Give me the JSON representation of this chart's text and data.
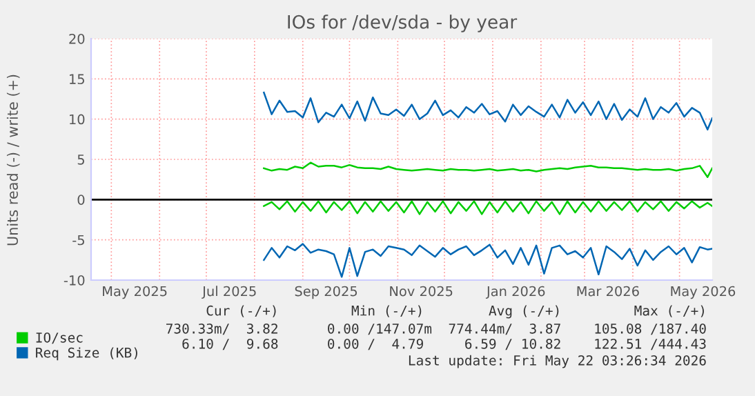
{
  "chart_data": {
    "type": "line",
    "title": "IOs for /dev/sda - by year",
    "ylabel": "Units read (-) / write (+)",
    "x": [
      "2025-08-07",
      "2025-08-12",
      "2025-08-17",
      "2025-08-22",
      "2025-08-27",
      "2025-09-01",
      "2025-09-06",
      "2025-09-11",
      "2025-09-16",
      "2025-09-21",
      "2025-09-26",
      "2025-10-01",
      "2025-10-06",
      "2025-10-11",
      "2025-10-16",
      "2025-10-21",
      "2025-10-26",
      "2025-10-31",
      "2025-11-05",
      "2025-11-10",
      "2025-11-15",
      "2025-11-20",
      "2025-11-25",
      "2025-11-30",
      "2025-12-05",
      "2025-12-10",
      "2025-12-15",
      "2025-12-20",
      "2025-12-25",
      "2025-12-30",
      "2026-01-04",
      "2026-01-09",
      "2026-01-14",
      "2026-01-19",
      "2026-01-24",
      "2026-01-29",
      "2026-02-03",
      "2026-02-08",
      "2026-02-13",
      "2026-02-18",
      "2026-02-23",
      "2026-02-28",
      "2026-03-05",
      "2026-03-10",
      "2026-03-15",
      "2026-03-20",
      "2026-03-25",
      "2026-03-30",
      "2026-04-04",
      "2026-04-09",
      "2026-04-14",
      "2026-04-19",
      "2026-04-24",
      "2026-04-29",
      "2026-05-04",
      "2026-05-09",
      "2026-05-14",
      "2026-05-19",
      "2026-05-22"
    ],
    "series": [
      {
        "name": "IO/sec",
        "color": "#00cc00",
        "values": [
          3.9,
          3.6,
          3.8,
          3.7,
          4.1,
          3.9,
          4.6,
          4.1,
          4.2,
          4.2,
          4.0,
          4.3,
          4.0,
          3.9,
          3.9,
          3.8,
          4.1,
          3.8,
          3.7,
          3.6,
          3.7,
          3.8,
          3.7,
          3.6,
          3.8,
          3.7,
          3.7,
          3.6,
          3.7,
          3.8,
          3.6,
          3.7,
          3.8,
          3.6,
          3.7,
          3.5,
          3.7,
          3.8,
          3.9,
          3.8,
          4.0,
          4.1,
          4.2,
          4.0,
          4.0,
          3.9,
          3.9,
          3.8,
          3.7,
          3.8,
          3.7,
          3.7,
          3.8,
          3.6,
          3.8,
          3.9,
          4.2,
          2.8,
          3.9
        ]
      },
      {
        "color": "#00cc00",
        "values": [
          -0.8,
          -0.3,
          -1.2,
          -0.2,
          -1.5,
          -0.3,
          -1.4,
          -0.2,
          -1.6,
          -0.3,
          -1.3,
          -0.2,
          -1.7,
          -0.3,
          -1.5,
          -0.2,
          -1.4,
          -0.3,
          -1.6,
          -0.2,
          -1.8,
          -0.3,
          -1.5,
          -0.2,
          -1.7,
          -0.3,
          -1.4,
          -0.2,
          -1.8,
          -0.3,
          -1.6,
          -0.2,
          -1.5,
          -0.3,
          -1.7,
          -0.2,
          -1.4,
          -0.3,
          -1.8,
          -0.2,
          -1.6,
          -0.3,
          -1.5,
          -0.2,
          -1.4,
          -0.3,
          -1.3,
          -0.2,
          -1.5,
          -0.3,
          -1.2,
          -0.2,
          -1.4,
          -0.3,
          -1.1,
          -0.2,
          -1.0,
          -0.4,
          -0.8
        ]
      },
      {
        "name": "Req Size (KB)",
        "color": "#0066b3",
        "values": [
          13.3,
          10.6,
          12.3,
          10.9,
          11.0,
          10.2,
          12.6,
          9.6,
          10.8,
          10.3,
          11.8,
          10.1,
          12.2,
          9.8,
          12.7,
          10.7,
          10.5,
          11.2,
          10.4,
          11.8,
          10.0,
          10.7,
          12.3,
          10.5,
          11.1,
          10.2,
          11.5,
          10.8,
          11.9,
          10.6,
          11.0,
          9.7,
          11.8,
          10.5,
          11.6,
          10.9,
          10.3,
          11.8,
          10.2,
          12.4,
          10.8,
          12.1,
          10.5,
          12.2,
          10.0,
          11.9,
          9.9,
          11.2,
          10.3,
          12.6,
          10.0,
          11.5,
          10.8,
          12.0,
          10.3,
          11.4,
          10.8,
          8.7,
          10.1
        ]
      },
      {
        "color": "#0066b3",
        "values": [
          -7.5,
          -6.0,
          -7.2,
          -5.8,
          -6.3,
          -5.5,
          -6.6,
          -6.2,
          -6.4,
          -6.8,
          -9.6,
          -6.0,
          -9.5,
          -6.5,
          -6.2,
          -7.0,
          -5.8,
          -6.0,
          -6.2,
          -6.9,
          -5.7,
          -6.4,
          -7.1,
          -6.0,
          -6.8,
          -6.2,
          -5.8,
          -6.9,
          -6.3,
          -5.6,
          -7.2,
          -6.3,
          -8.0,
          -6.0,
          -8.1,
          -5.7,
          -9.2,
          -6.0,
          -5.7,
          -6.8,
          -6.4,
          -7.2,
          -6.0,
          -9.3,
          -5.8,
          -6.5,
          -7.4,
          -6.1,
          -8.2,
          -6.3,
          -7.5,
          -6.5,
          -5.8,
          -6.8,
          -6.0,
          -7.8,
          -5.9,
          -6.2,
          -6.1
        ]
      }
    ],
    "xlim": [
      "2025-04-18",
      "2026-05-22"
    ],
    "xticks": [
      {
        "value": "2025-05-01",
        "label": null
      },
      {
        "value": "2025-05-16",
        "label": "May 2025"
      },
      {
        "value": "2025-06-01",
        "label": null
      },
      {
        "value": "2025-07-01",
        "label": null
      },
      {
        "value": "2025-07-16",
        "label": "Jul 2025"
      },
      {
        "value": "2025-08-01",
        "label": null
      },
      {
        "value": "2025-09-01",
        "label": null
      },
      {
        "value": "2025-09-16",
        "label": "Sep 2025"
      },
      {
        "value": "2025-10-01",
        "label": null
      },
      {
        "value": "2025-11-01",
        "label": null
      },
      {
        "value": "2025-11-16",
        "label": "Nov 2025"
      },
      {
        "value": "2025-12-01",
        "label": null
      },
      {
        "value": "2026-01-01",
        "label": null
      },
      {
        "value": "2026-01-16",
        "label": "Jan 2026"
      },
      {
        "value": "2026-02-01",
        "label": null
      },
      {
        "value": "2026-03-01",
        "label": null
      },
      {
        "value": "2026-03-16",
        "label": "Mar 2026"
      },
      {
        "value": "2026-04-01",
        "label": null
      },
      {
        "value": "2026-05-01",
        "label": null
      },
      {
        "value": "2026-05-16",
        "label": "May 2026"
      }
    ],
    "ylim": [
      -10,
      20
    ],
    "yticks": [
      -10,
      -5,
      0,
      5,
      10,
      15,
      20
    ],
    "ref_lines": [
      {
        "axis": "y",
        "value": 0,
        "color": "#000000"
      }
    ],
    "grid": true,
    "legend": "bottom",
    "annotations": [
      "     Cur (-/+)         Min (-/+)        Avg (-/+)         Max (-/+)",
      "730.33m/  3.82      0.00 /147.07m  774.44m/  3.87    105.08 /187.40",
      "  6.10 /  9.68      0.00 /  4.79     6.59 / 10.82    122.51 /444.43",
      "Last update: Fri May 22 03:26:34 2026"
    ]
  }
}
